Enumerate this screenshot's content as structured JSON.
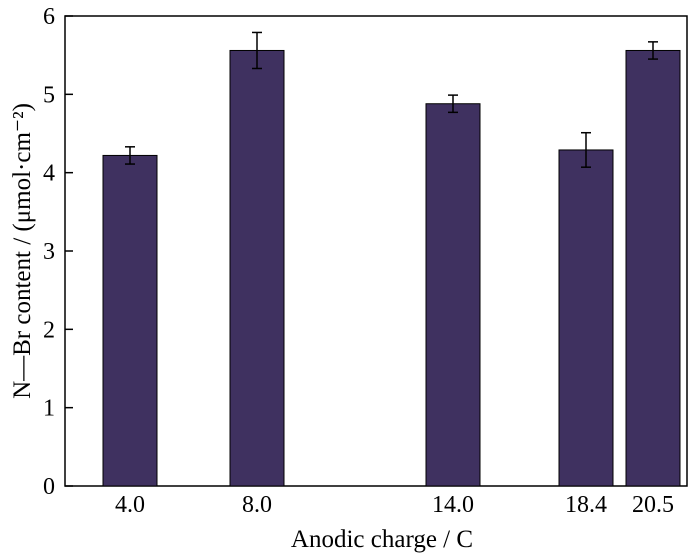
{
  "chart_data": {
    "type": "bar",
    "x": [
      4.0,
      8.0,
      14.0,
      18.4,
      20.5
    ],
    "tick_labels": [
      "4.0",
      "8.0",
      "14.0",
      "18.4",
      "20.5"
    ],
    "values": [
      4.22,
      5.56,
      4.88,
      4.29,
      5.56
    ],
    "error": [
      0.11,
      0.23,
      0.11,
      0.22,
      0.11
    ],
    "xlabel": "Anodic charge / C",
    "ylabel": "N—Br content / (μmol·cm⁻²)",
    "ylim": [
      0,
      6
    ],
    "yticks": [
      0,
      1,
      2,
      3,
      4,
      5,
      6
    ],
    "bar_color": "#3f3160",
    "grid": false
  }
}
